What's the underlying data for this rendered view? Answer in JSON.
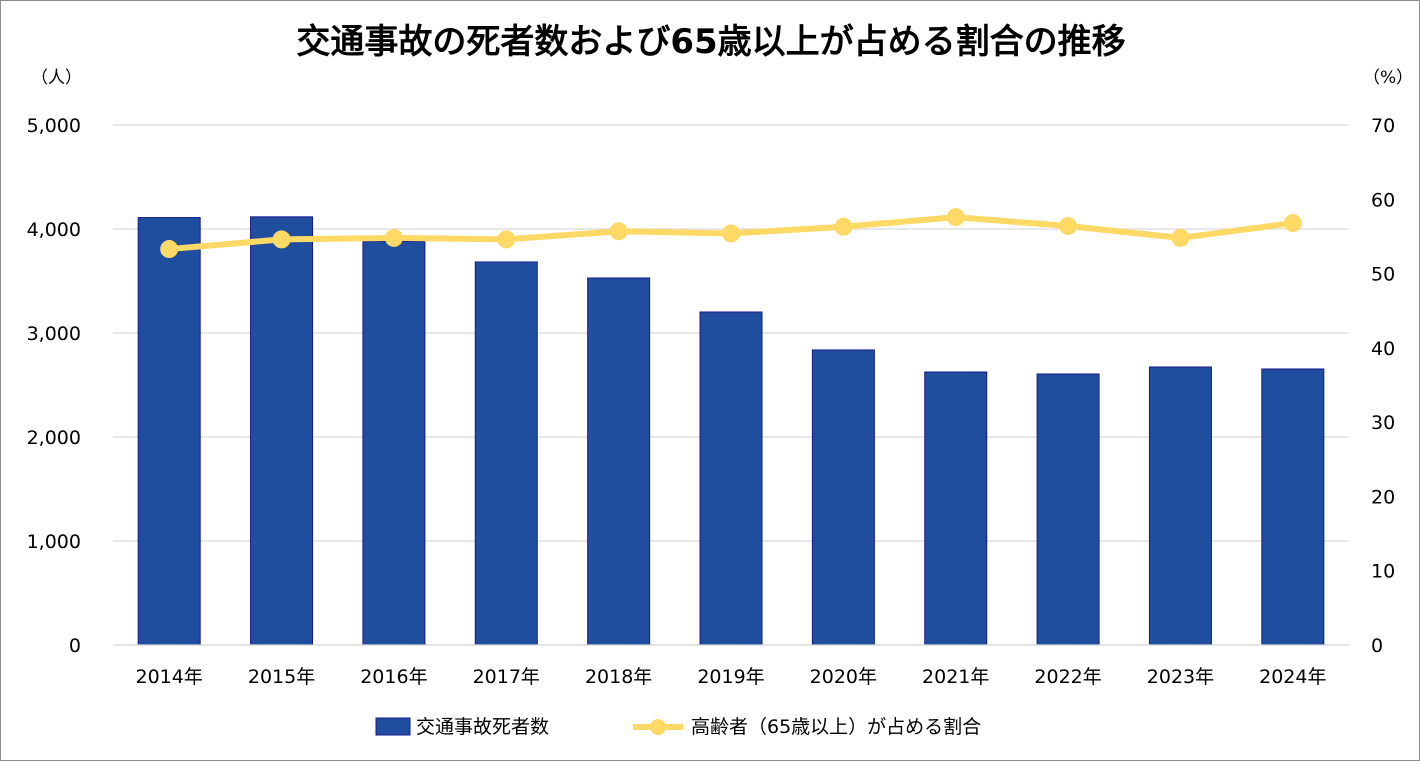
{
  "chart_data": {
    "type": "bar+line",
    "title": "交通事故の死者数および65歳以上が占める割合の推移",
    "y_left_unit": "（人）",
    "y_right_unit": "（%）",
    "categories": [
      "2014年",
      "2015年",
      "2016年",
      "2017年",
      "2018年",
      "2019年",
      "2020年",
      "2021年",
      "2022年",
      "2023年",
      "2024年"
    ],
    "y_left": {
      "range": [
        0,
        5000
      ],
      "ticks": [
        "0",
        "1,000",
        "2,000",
        "3,000",
        "4,000",
        "5,000"
      ],
      "tick_values": [
        0,
        1000,
        2000,
        3000,
        4000,
        5000
      ]
    },
    "y_right": {
      "range": [
        0,
        70
      ],
      "ticks": [
        "0",
        "10",
        "20",
        "30",
        "40",
        "50",
        "60",
        "70"
      ],
      "tick_values": [
        0,
        10,
        20,
        30,
        40,
        50,
        60,
        70
      ]
    },
    "grid": true,
    "legend_position": "bottom",
    "series": [
      {
        "name": "交通事故死者数",
        "type": "bar",
        "axis": "left",
        "color": "#1F4E9F",
        "values": [
          4110,
          4117,
          3880,
          3683,
          3529,
          3202,
          2837,
          2625,
          2606,
          2673,
          2654
        ]
      },
      {
        "name": "高齢者（65歳以上）が占める割合",
        "type": "line",
        "axis": "right",
        "color": "#FFD966",
        "values": [
          53.3,
          54.6,
          54.8,
          54.6,
          55.7,
          55.4,
          56.3,
          57.6,
          56.4,
          54.8,
          56.8
        ]
      }
    ]
  }
}
